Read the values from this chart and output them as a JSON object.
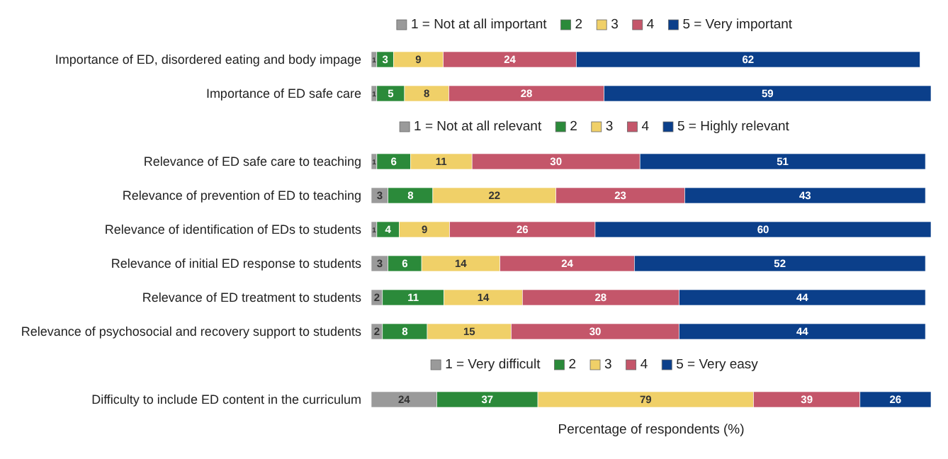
{
  "chart_data": [
    {
      "type": "bar",
      "orientation": "horizontal",
      "stacked": true,
      "data_labels": true,
      "legend": "top",
      "tick_labels": "y",
      "xlim": [
        0,
        101
      ],
      "categories": [
        "Importance of ED, disordered eating and body impage",
        "Importance of ED safe care"
      ],
      "series": [
        {
          "name": "1 = Not at all important",
          "color": "#9a9a9a",
          "values": [
            1,
            1
          ]
        },
        {
          "name": "2",
          "color": "#2b8a3a",
          "values": [
            3,
            5
          ]
        },
        {
          "name": "3",
          "color": "#f0d068",
          "values": [
            9,
            8
          ]
        },
        {
          "name": "4",
          "color": "#c4566a",
          "values": [
            24,
            28
          ]
        },
        {
          "name": "5 = Very important",
          "color": "#0b3f8a",
          "values": [
            62,
            59
          ]
        }
      ]
    },
    {
      "type": "bar",
      "orientation": "horizontal",
      "stacked": true,
      "data_labels": true,
      "legend": "top",
      "tick_labels": "y",
      "xlim": [
        0,
        100
      ],
      "categories": [
        "Relevance of ED safe care to teaching",
        "Relevance of prevention of ED to teaching",
        "Relevance of identification of EDs to students",
        "Relevance of initial ED response to students",
        "Relevance of ED treatment to students",
        "Relevance of psychosocial and recovery support to students"
      ],
      "series": [
        {
          "name": "1 = Not at all relevant",
          "color": "#9a9a9a",
          "values": [
            1,
            3,
            1,
            3,
            2,
            2
          ]
        },
        {
          "name": "2",
          "color": "#2b8a3a",
          "values": [
            6,
            8,
            4,
            6,
            11,
            8
          ]
        },
        {
          "name": "3",
          "color": "#f0d068",
          "values": [
            11,
            22,
            9,
            14,
            14,
            15
          ]
        },
        {
          "name": "4",
          "color": "#c4566a",
          "values": [
            30,
            23,
            26,
            24,
            28,
            30
          ]
        },
        {
          "name": "5 = Highly relevant",
          "color": "#0b3f8a",
          "values": [
            51,
            43,
            60,
            52,
            44,
            44
          ]
        }
      ]
    },
    {
      "type": "bar",
      "orientation": "horizontal",
      "stacked": true,
      "data_labels": true,
      "legend": "top",
      "tick_labels": "y",
      "xlim": [
        0,
        205
      ],
      "xlabel": "Percentage of respondents (%)",
      "categories": [
        "Difficulty to include ED content in the curriculum"
      ],
      "series": [
        {
          "name": "1 = Very difficult",
          "color": "#9a9a9a",
          "values": [
            24
          ]
        },
        {
          "name": "2",
          "color": "#2b8a3a",
          "values": [
            37
          ]
        },
        {
          "name": "3",
          "color": "#f0d068",
          "values": [
            79
          ]
        },
        {
          "name": "4",
          "color": "#c4566a",
          "values": [
            39
          ]
        },
        {
          "name": "5 = Very easy",
          "color": "#0b3f8a",
          "values": [
            26
          ]
        }
      ]
    }
  ]
}
